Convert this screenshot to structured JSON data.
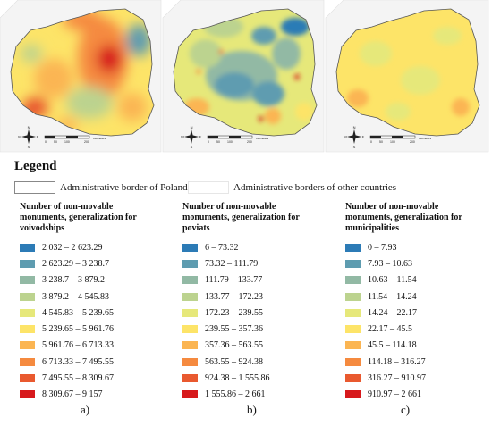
{
  "legend": {
    "title": "Legend",
    "border_poland": "Administrative border of Poland",
    "border_other": "Administrative borders of other countries"
  },
  "panels": [
    {
      "id": "a",
      "label": "a)",
      "heading": [
        "Number of non-movable",
        "monuments, generalization for",
        "voivodships"
      ],
      "classes": [
        {
          "range": "2 032 – 2 623.29",
          "color": "#2c7bb6"
        },
        {
          "range": "2 623.29 – 3 238.7",
          "color": "#5e9cb0"
        },
        {
          "range": "3 238.7 – 3 879.2",
          "color": "#92b9a4"
        },
        {
          "range": "3 879.2 – 4 545.83",
          "color": "#bcd38f"
        },
        {
          "range": "4 545.83 – 5 239.65",
          "color": "#e6e87a"
        },
        {
          "range": "5 239.65 – 5 961.76",
          "color": "#fde468"
        },
        {
          "range": "5 961.76 – 6 713.33",
          "color": "#fbb552"
        },
        {
          "range": "6 713.33 – 7 495.55",
          "color": "#f58a3f"
        },
        {
          "range": "7 495.55 – 8 309.67",
          "color": "#e9592f"
        },
        {
          "range": "8 309.67 – 9 157",
          "color": "#d7191c"
        }
      ]
    },
    {
      "id": "b",
      "label": "b)",
      "heading": [
        "Number of non-movable",
        "monuments, generalization for",
        "poviats"
      ],
      "classes": [
        {
          "range": "6 – 73.32",
          "color": "#2c7bb6"
        },
        {
          "range": "73.32 – 111.79",
          "color": "#5e9cb0"
        },
        {
          "range": "111.79 – 133.77",
          "color": "#92b9a4"
        },
        {
          "range": "133.77 – 172.23",
          "color": "#bcd38f"
        },
        {
          "range": "172.23 – 239.55",
          "color": "#e6e87a"
        },
        {
          "range": "239.55 – 357.36",
          "color": "#fde468"
        },
        {
          "range": "357.36 – 563.55",
          "color": "#fbb552"
        },
        {
          "range": "563.55 – 924.38",
          "color": "#f58a3f"
        },
        {
          "range": "924.38 – 1 555.86",
          "color": "#e9592f"
        },
        {
          "range": "1 555.86 – 2 661",
          "color": "#d7191c"
        }
      ]
    },
    {
      "id": "c",
      "label": "c)",
      "heading": [
        "Number of non-movable",
        "monuments, generalization for",
        "municipalities"
      ],
      "classes": [
        {
          "range": "0 – 7.93",
          "color": "#2c7bb6"
        },
        {
          "range": "7.93 – 10.63",
          "color": "#5e9cb0"
        },
        {
          "range": "10.63 – 11.54",
          "color": "#92b9a4"
        },
        {
          "range": "11.54 – 14.24",
          "color": "#bcd38f"
        },
        {
          "range": "14.24 – 22.17",
          "color": "#e6e87a"
        },
        {
          "range": "22.17 – 45.5",
          "color": "#fde468"
        },
        {
          "range": "45.5 – 114.18",
          "color": "#fbb552"
        },
        {
          "range": "114.18 – 316.27",
          "color": "#f58a3f"
        },
        {
          "range": "316.27 – 910.97",
          "color": "#e9592f"
        },
        {
          "range": "910.97 – 2 661",
          "color": "#d7191c"
        }
      ]
    }
  ],
  "compass": {
    "n": "N",
    "s": "S",
    "e": "E",
    "w": "W"
  },
  "scale": {
    "ticks": [
      "0",
      "50",
      "100",
      "200"
    ],
    "unit": "Kilometers"
  }
}
